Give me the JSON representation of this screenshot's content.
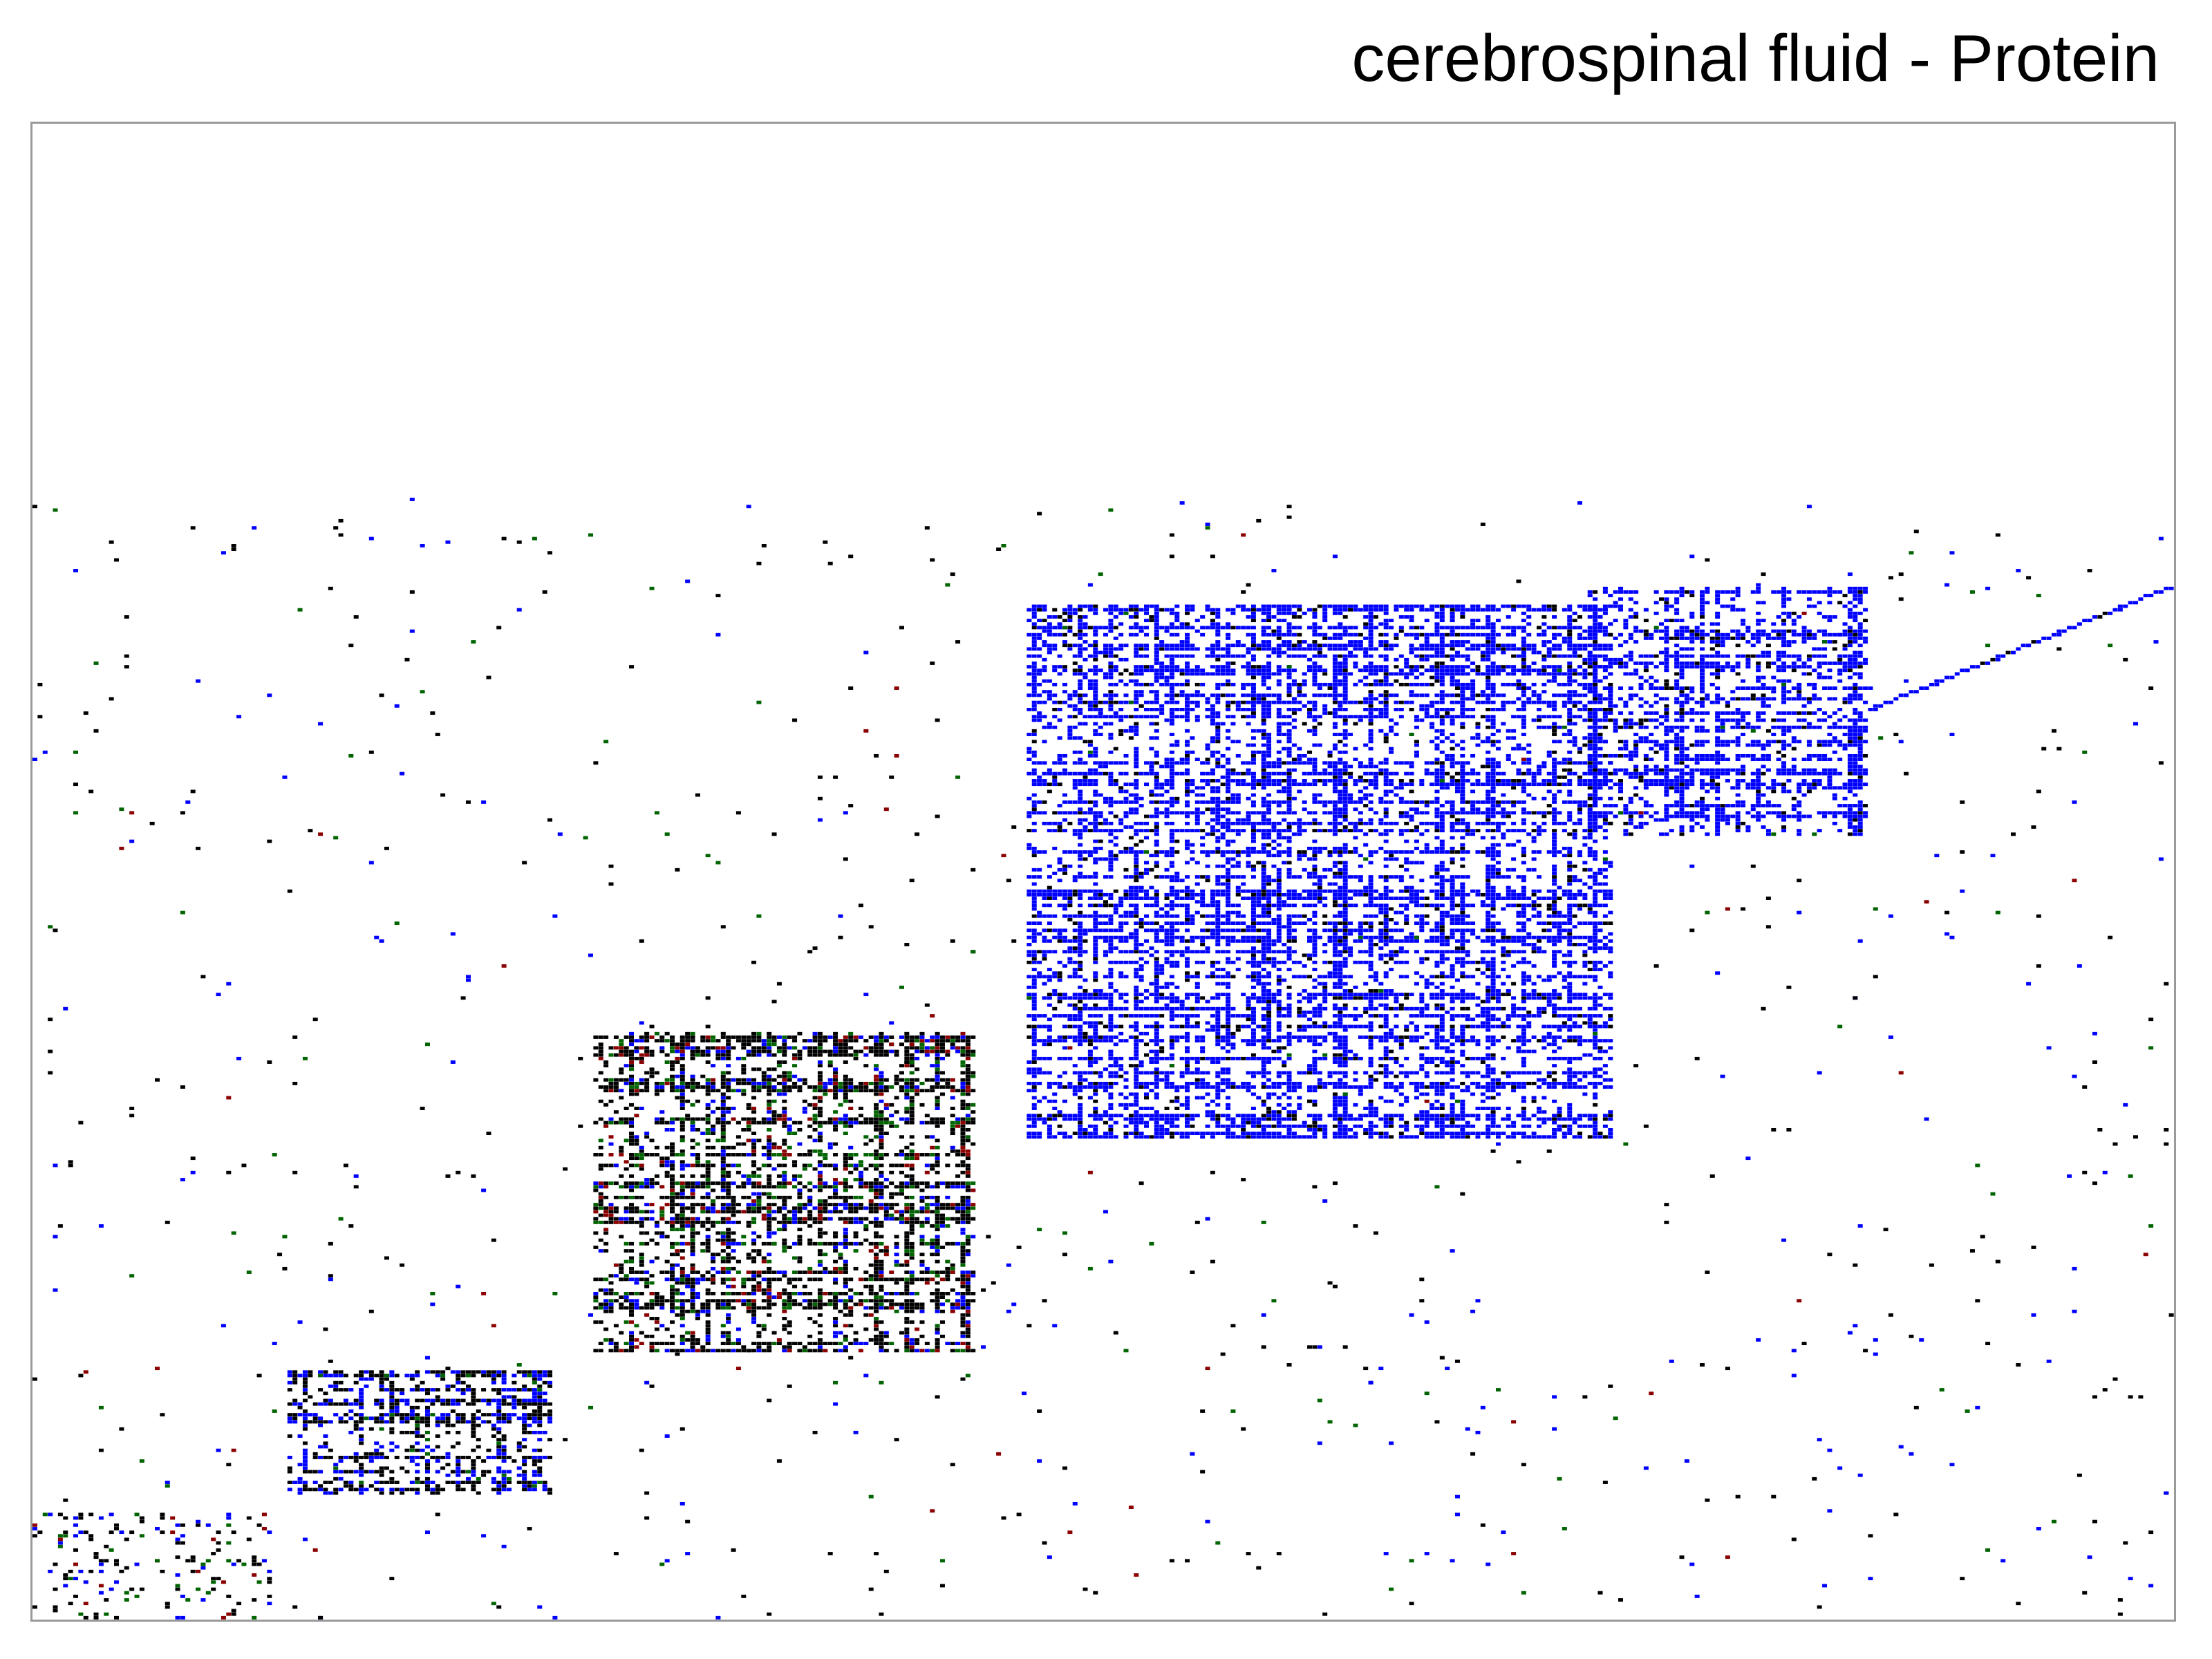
{
  "chart_data": {
    "type": "heatmap",
    "title": "cerebrospinal fluid - Protein",
    "xlabel": "",
    "ylabel": "",
    "grid": false,
    "legend": "none",
    "matrix_size": 420,
    "colors": {
      "blue": "#0000ff",
      "black": "#000000",
      "green": "#006400",
      "red": "#8b0000",
      "frame": "#9a9a9a",
      "background": "#ffffff"
    },
    "blocks": [
      {
        "range_x": [
          0,
          48
        ],
        "range_y": [
          0,
          30
        ],
        "color": "mixed",
        "density": "sparse"
      },
      {
        "range_x": [
          50,
          102
        ],
        "range_y": [
          35,
          70
        ],
        "color": "black/blue",
        "density": "dense"
      },
      {
        "range_x": [
          110,
          185
        ],
        "range_y": [
          75,
          165
        ],
        "color": "black/green/red",
        "density": "dense"
      },
      {
        "range_x": [
          195,
          310
        ],
        "range_y": [
          135,
          285
        ],
        "color": "blue",
        "density": "dense"
      },
      {
        "range_x": [
          305,
          360
        ],
        "range_y": [
          220,
          290
        ],
        "color": "blue",
        "density": "dense"
      },
      {
        "range_x": [
          360,
          420
        ],
        "range_y": [
          255,
          290
        ],
        "color": "blue",
        "density": "diagonal"
      }
    ]
  }
}
